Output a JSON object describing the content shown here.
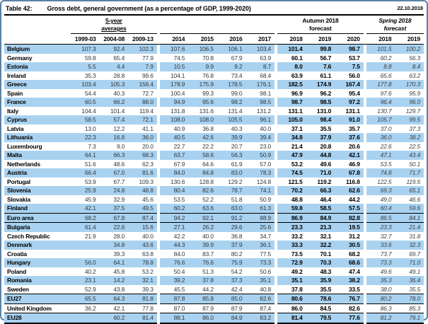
{
  "title": {
    "label": "Table 42:",
    "text": "Gross debt, general government (as a percentage of GDP, 1999-2020)",
    "date": "22.10.2018"
  },
  "header": {
    "groups": [
      {
        "line1": "5-year",
        "line2": "averages"
      },
      {
        "line1": "",
        "line2": ""
      },
      {
        "line1": "Autumn 2018",
        "line2": "forecast"
      },
      {
        "line1": "Spring 2018",
        "line2": "forecast"
      }
    ],
    "years": [
      "1999-03",
      "2004-08",
      "2009-13",
      "2014",
      "2015",
      "2016",
      "2017",
      "2018",
      "2019",
      "2020",
      "2018",
      "2019"
    ]
  },
  "colors": {
    "row_shade": "#a9d2f0",
    "frame": "#5c81a6",
    "rule": "#000000"
  },
  "rows": [
    {
      "name": "Belgium",
      "shaded": true,
      "summary": false,
      "values": [
        "107.3",
        "92.4",
        "102.3",
        "107.6",
        "106.5",
        "106.1",
        "103.4",
        "101.4",
        "99.8",
        "98.7",
        "101.5",
        "100.2"
      ]
    },
    {
      "name": "Germany",
      "shaded": false,
      "summary": false,
      "values": [
        "59.8",
        "65.4",
        "77.9",
        "74.5",
        "70.8",
        "67.9",
        "63.9",
        "60.1",
        "56.7",
        "53.7",
        "60.2",
        "56.3"
      ]
    },
    {
      "name": "Estonia",
      "shaded": true,
      "summary": false,
      "values": [
        "5.5",
        "4.4",
        "7.9",
        "10.5",
        "9.9",
        "9.2",
        "8.7",
        "8.0",
        "7.6",
        "7.5",
        "8.8",
        "8.4"
      ]
    },
    {
      "name": "Ireland",
      "shaded": false,
      "summary": false,
      "values": [
        "35.3",
        "28.8",
        "99.6",
        "104.1",
        "76.8",
        "73.4",
        "68.4",
        "63.9",
        "61.1",
        "56.0",
        "65.6",
        "63.2"
      ]
    },
    {
      "name": "Greece",
      "shaded": true,
      "summary": false,
      "values": [
        "103.4",
        "105.3",
        "156.4",
        "178.9",
        "175.9",
        "178.5",
        "176.1",
        "182.5",
        "174.9",
        "167.4",
        "177.8",
        "170.3"
      ]
    },
    {
      "name": "Spain",
      "shaded": false,
      "summary": false,
      "values": [
        "54.4",
        "40.3",
        "72.7",
        "100.4",
        "99.3",
        "99.0",
        "98.1",
        "96.9",
        "96.2",
        "95.4",
        "97.6",
        "95.9"
      ]
    },
    {
      "name": "France",
      "shaded": true,
      "summary": false,
      "values": [
        "60.5",
        "66.2",
        "88.0",
        "94.9",
        "95.6",
        "98.2",
        "98.5",
        "98.7",
        "98.5",
        "97.2",
        "96.4",
        "96.0"
      ]
    },
    {
      "name": "Italy",
      "shaded": false,
      "summary": false,
      "values": [
        "104.4",
        "101.4",
        "119.4",
        "131.8",
        "131.6",
        "131.4",
        "131.2",
        "131.1",
        "131.0",
        "131.1",
        "130.7",
        "129.7"
      ]
    },
    {
      "name": "Cyprus",
      "shaded": true,
      "summary": false,
      "values": [
        "58.5",
        "57.4",
        "72.1",
        "108.0",
        "108.0",
        "105.5",
        "96.1",
        "105.0",
        "98.4",
        "91.0",
        "105.7",
        "99.5"
      ]
    },
    {
      "name": "Latvia",
      "shaded": false,
      "summary": false,
      "values": [
        "13.0",
        "12.2",
        "41.1",
        "40.9",
        "36.8",
        "40.3",
        "40.0",
        "37.1",
        "35.5",
        "35.7",
        "37.0",
        "37.3"
      ]
    },
    {
      "name": "Lithuania",
      "shaded": true,
      "summary": false,
      "values": [
        "22.3",
        "16.8",
        "36.0",
        "40.5",
        "42.6",
        "39.9",
        "39.4",
        "34.8",
        "37.9",
        "37.6",
        "36.0",
        "38.2"
      ]
    },
    {
      "name": "Luxembourg",
      "shaded": false,
      "summary": false,
      "values": [
        "7.3",
        "9.0",
        "20.0",
        "22.7",
        "22.2",
        "20.7",
        "23.0",
        "21.4",
        "20.8",
        "20.6",
        "22.6",
        "22.5"
      ]
    },
    {
      "name": "Malta",
      "shaded": true,
      "summary": false,
      "values": [
        "64.1",
        "66.3",
        "68.3",
        "63.7",
        "58.6",
        "56.3",
        "50.9",
        "47.9",
        "44.8",
        "42.1",
        "47.1",
        "43.4"
      ]
    },
    {
      "name": "Netherlands",
      "shaded": false,
      "summary": false,
      "values": [
        "51.6",
        "48.6",
        "62.3",
        "67.9",
        "64.6",
        "61.9",
        "57.0",
        "53.2",
        "49.6",
        "46.9",
        "53.5",
        "50.1"
      ]
    },
    {
      "name": "Austria",
      "shaded": true,
      "summary": false,
      "values": [
        "66.4",
        "67.0",
        "81.6",
        "84.0",
        "84.8",
        "83.0",
        "78.3",
        "74.5",
        "71.0",
        "67.8",
        "74.8",
        "71.7"
      ]
    },
    {
      "name": "Portugal",
      "shaded": false,
      "summary": false,
      "values": [
        "53.9",
        "67.7",
        "109.3",
        "130.6",
        "128.8",
        "129.2",
        "124.8",
        "121.5",
        "119.2",
        "116.8",
        "122.5",
        "119.5"
      ]
    },
    {
      "name": "Slovenia",
      "shaded": true,
      "summary": false,
      "values": [
        "25.9",
        "24.8",
        "48.8",
        "80.4",
        "82.6",
        "78.7",
        "74.1",
        "70.2",
        "66.3",
        "62.6",
        "69.3",
        "65.1"
      ]
    },
    {
      "name": "Slovakia",
      "shaded": false,
      "summary": false,
      "values": [
        "45.9",
        "32.9",
        "45.6",
        "53.5",
        "52.2",
        "51.8",
        "50.9",
        "48.8",
        "46.4",
        "44.2",
        "49.0",
        "46.6"
      ]
    },
    {
      "name": "Finland",
      "shaded": true,
      "summary": false,
      "values": [
        "42.1",
        "37.5",
        "49.5",
        "60.2",
        "63.6",
        "63.0",
        "61.3",
        "59.8",
        "58.5",
        "57.5",
        "60.4",
        "59.6"
      ]
    },
    {
      "name": "Euro area",
      "shaded": true,
      "summary": true,
      "values": [
        "68.2",
        "67.8",
        "87.4",
        "94.2",
        "92.1",
        "91.2",
        "88.9",
        "86.9",
        "84.9",
        "82.8",
        "86.5",
        "84.1"
      ]
    },
    {
      "name": "Bulgaria",
      "shaded": true,
      "summary": false,
      "values": [
        "61.4",
        "22.6",
        "15.6",
        "27.1",
        "26.2",
        "29.6",
        "25.6",
        "23.3",
        "21.3",
        "19.5",
        "23.3",
        "21.4"
      ]
    },
    {
      "name": "Czech Republic",
      "shaded": false,
      "summary": false,
      "values": [
        "21.9",
        "28.0",
        "40.0",
        "42.2",
        "40.0",
        "36.8",
        "34.7",
        "33.2",
        "32.1",
        "31.2",
        "32.7",
        "31.8"
      ]
    },
    {
      "name": "Denmark",
      "shaded": true,
      "summary": false,
      "values": [
        "",
        "34.8",
        "43.6",
        "44.3",
        "39.9",
        "37.9",
        "36.1",
        "33.3",
        "32.2",
        "30.5",
        "33.6",
        "32.3"
      ]
    },
    {
      "name": "Croatia",
      "shaded": false,
      "summary": false,
      "values": [
        "",
        "39.3",
        "63.8",
        "84.0",
        "83.7",
        "80.2",
        "77.5",
        "73.5",
        "70.1",
        "68.2",
        "73.7",
        "69.7"
      ]
    },
    {
      "name": "Hungary",
      "shaded": true,
      "summary": false,
      "values": [
        "56.0",
        "64.1",
        "78.8",
        "76.6",
        "76.6",
        "75.9",
        "73.3",
        "72.9",
        "70.3",
        "68.6",
        "73.3",
        "71.0"
      ]
    },
    {
      "name": "Poland",
      "shaded": false,
      "summary": false,
      "values": [
        "40.2",
        "45.8",
        "53.2",
        "50.4",
        "51.3",
        "54.2",
        "50.6",
        "49.2",
        "48.3",
        "47.4",
        "49.6",
        "49.1"
      ]
    },
    {
      "name": "Romania",
      "shaded": true,
      "summary": false,
      "values": [
        "23.1",
        "14.2",
        "32.1",
        "39.2",
        "37.8",
        "37.3",
        "35.1",
        "35.1",
        "35.9",
        "38.2",
        "35.3",
        "36.4"
      ]
    },
    {
      "name": "Sweden",
      "shaded": false,
      "summary": false,
      "values": [
        "52.9",
        "43.8",
        "39.3",
        "45.5",
        "44.2",
        "42.4",
        "40.8",
        "37.8",
        "35.5",
        "33.5",
        "38.0",
        "35.5"
      ]
    },
    {
      "name": "EU27",
      "shaded": true,
      "summary": true,
      "values": [
        "65.5",
        "64.3",
        "81.8",
        "87.8",
        "85.8",
        "85.0",
        "82.6",
        "80.6",
        "78.6",
        "76.7",
        "80.2",
        "78.0"
      ]
    },
    {
      "name": "United Kingdom",
      "shaded": false,
      "summary": false,
      "values": [
        "36.2",
        "42.1",
        "77.8",
        "87.0",
        "87.9",
        "87.9",
        "87.4",
        "86.0",
        "84.5",
        "82.6",
        "86.3",
        "85.3"
      ]
    },
    {
      "name": "EU28",
      "shaded": true,
      "summary": true,
      "values": [
        "",
        "60.2",
        "81.4",
        "88.1",
        "86.0",
        "84.9",
        "83.2",
        "81.4",
        "79.5",
        "77.6",
        "81.2",
        "79.1"
      ]
    }
  ]
}
